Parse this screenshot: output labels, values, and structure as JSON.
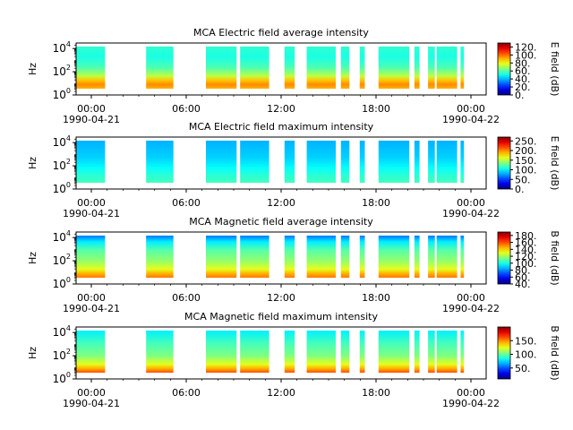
{
  "chart_data": [
    {
      "type": "heatmap",
      "title": "MCA  Electric field average intensity",
      "ylabel": "Hz",
      "y_scale": "log",
      "ylim": [
        1,
        30000
      ],
      "y_ticks": [
        {
          "base": "10",
          "exp": "0"
        },
        {
          "base": "10",
          "exp": "2"
        },
        {
          "base": "10",
          "exp": "4"
        }
      ],
      "xlim": [
        "1990-04-21 00:00",
        "1990-04-22 00:00"
      ],
      "x_ticks": [
        "00:00",
        "06:00",
        "12:00",
        "18:00",
        "00:00"
      ],
      "x_dates": [
        "1990-04-21",
        "1990-04-22"
      ],
      "colorbar": {
        "label": "E field (dB)",
        "range": [
          0,
          130
        ],
        "ticks": [
          "0.",
          "20.",
          "40.",
          "60.",
          "80.",
          "100.",
          "120."
        ]
      },
      "data_intervals": [
        [
          0.0,
          1.7
        ],
        [
          4.1,
          5.7
        ],
        [
          7.6,
          9.4
        ],
        [
          9.6,
          11.3
        ],
        [
          12.2,
          12.8
        ],
        [
          13.5,
          15.2
        ],
        [
          15.5,
          16.0
        ],
        [
          16.6,
          16.9
        ],
        [
          17.7,
          19.5
        ],
        [
          19.8,
          20.1
        ],
        [
          20.6,
          21.0
        ],
        [
          21.1,
          22.3
        ],
        [
          22.5,
          22.7
        ]
      ]
    },
    {
      "type": "heatmap",
      "title": "MCA  Electric field maximum intensity",
      "ylabel": "Hz",
      "y_scale": "log",
      "ylim": [
        1,
        30000
      ],
      "y_ticks": [
        {
          "base": "10",
          "exp": "0"
        },
        {
          "base": "10",
          "exp": "2"
        },
        {
          "base": "10",
          "exp": "4"
        }
      ],
      "xlim": [
        "1990-04-21 00:00",
        "1990-04-22 00:00"
      ],
      "x_ticks": [
        "00:00",
        "06:00",
        "12:00",
        "18:00",
        "00:00"
      ],
      "x_dates": [
        "1990-04-21",
        "1990-04-22"
      ],
      "colorbar": {
        "label": "E field (dB)",
        "range": [
          0,
          270
        ],
        "ticks": [
          "0.",
          "50.",
          "100.",
          "150.",
          "200.",
          "250."
        ]
      },
      "data_intervals": [
        [
          0.0,
          1.7
        ],
        [
          4.1,
          5.7
        ],
        [
          7.6,
          9.4
        ],
        [
          9.6,
          11.3
        ],
        [
          12.2,
          12.8
        ],
        [
          13.5,
          15.2
        ],
        [
          15.5,
          16.0
        ],
        [
          16.6,
          16.9
        ],
        [
          17.7,
          19.5
        ],
        [
          19.8,
          20.1
        ],
        [
          20.6,
          21.0
        ],
        [
          21.1,
          22.3
        ],
        [
          22.5,
          22.7
        ]
      ]
    },
    {
      "type": "heatmap",
      "title": "MCA  Magnetic field average intensity",
      "ylabel": "Hz",
      "y_scale": "log",
      "ylim": [
        1,
        30000
      ],
      "y_ticks": [
        {
          "base": "10",
          "exp": "0"
        },
        {
          "base": "10",
          "exp": "2"
        },
        {
          "base": "10",
          "exp": "4"
        }
      ],
      "xlim": [
        "1990-04-21 00:00",
        "1990-04-22 00:00"
      ],
      "x_ticks": [
        "00:00",
        "06:00",
        "12:00",
        "18:00",
        "00:00"
      ],
      "x_dates": [
        "1990-04-21",
        "1990-04-22"
      ],
      "colorbar": {
        "label": "B field (dB)",
        "range": [
          40,
          190
        ],
        "ticks": [
          "40.",
          "60.",
          "80.",
          "100.",
          "120.",
          "140.",
          "160.",
          "180."
        ]
      },
      "data_intervals": [
        [
          0.0,
          1.7
        ],
        [
          4.1,
          5.7
        ],
        [
          7.6,
          9.4
        ],
        [
          9.6,
          11.3
        ],
        [
          12.2,
          12.8
        ],
        [
          13.5,
          15.2
        ],
        [
          15.5,
          16.0
        ],
        [
          16.6,
          16.9
        ],
        [
          17.7,
          19.5
        ],
        [
          19.8,
          20.1
        ],
        [
          20.6,
          21.0
        ],
        [
          21.1,
          22.3
        ],
        [
          22.5,
          22.7
        ]
      ]
    },
    {
      "type": "heatmap",
      "title": "MCA  Magnetic field maximum intensity",
      "ylabel": "Hz",
      "y_scale": "log",
      "ylim": [
        1,
        30000
      ],
      "y_ticks": [
        {
          "base": "10",
          "exp": "0"
        },
        {
          "base": "10",
          "exp": "2"
        },
        {
          "base": "10",
          "exp": "4"
        }
      ],
      "xlim": [
        "1990-04-21 00:00",
        "1990-04-22 00:00"
      ],
      "x_ticks": [
        "00:00",
        "06:00",
        "12:00",
        "18:00",
        "00:00"
      ],
      "x_dates": [
        "1990-04-21",
        "1990-04-22"
      ],
      "colorbar": {
        "label": "B field (dB)",
        "range": [
          10,
          200
        ],
        "ticks": [
          "50.",
          "100.",
          "150."
        ]
      },
      "data_intervals": [
        [
          0.0,
          1.7
        ],
        [
          4.1,
          5.7
        ],
        [
          7.6,
          9.4
        ],
        [
          9.6,
          11.3
        ],
        [
          12.2,
          12.8
        ],
        [
          13.5,
          15.2
        ],
        [
          15.5,
          16.0
        ],
        [
          16.6,
          16.9
        ],
        [
          17.7,
          19.5
        ],
        [
          19.8,
          20.1
        ],
        [
          20.6,
          21.0
        ],
        [
          21.1,
          22.3
        ],
        [
          22.5,
          22.7
        ]
      ]
    }
  ]
}
